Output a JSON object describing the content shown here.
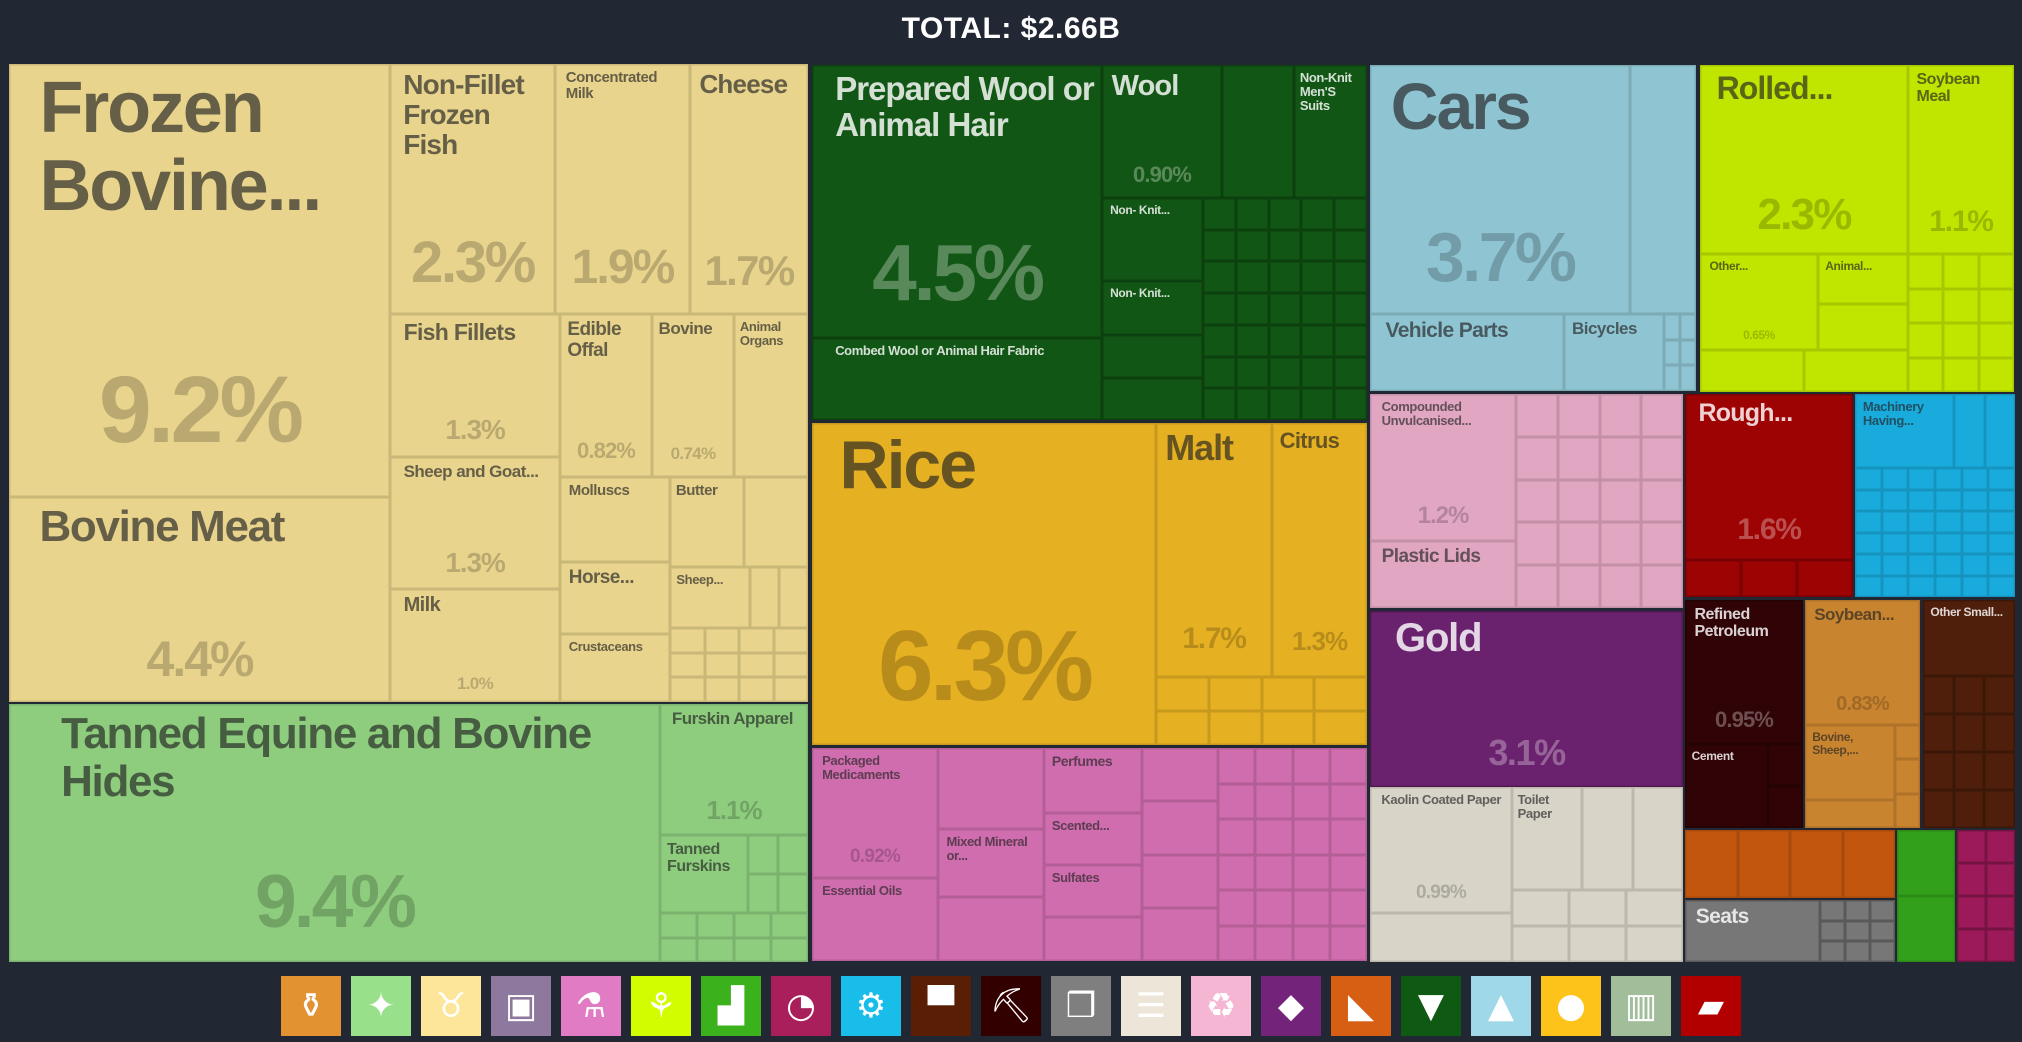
{
  "header": {
    "title": "TOTAL: $2.66B"
  },
  "sectors": {
    "animal_products": {
      "color": "#e8d48c",
      "dark": false
    },
    "animal_hides": {
      "color": "#8ecd7e",
      "dark": false
    },
    "textiles": {
      "color": "#125615",
      "dark": true
    },
    "vegetable_products": {
      "color": "#e5b021",
      "dark": false
    },
    "chemicals": {
      "color": "#cf6dae",
      "dark": false
    },
    "transportation": {
      "color": "#8fc5d2",
      "dark": false
    },
    "vegetable_produce": {
      "color": "#c0e600",
      "dark": false
    },
    "plastics": {
      "color": "#e0a6c2",
      "dark": false
    },
    "precious": {
      "color": "#6b226e",
      "dark": true
    },
    "paper": {
      "color": "#d8d4c8",
      "dark": false
    },
    "wood": {
      "color": "#9e0304",
      "dark": true
    },
    "machines": {
      "color": "#1aabdd",
      "dark": false
    },
    "mineral": {
      "color": "#300406",
      "dark": true
    },
    "foodstuffs": {
      "color": "#c98430",
      "dark": false
    },
    "metals": {
      "color": "#4f1f0b",
      "dark": true
    },
    "stone": {
      "color": "#c2560f",
      "dark": false
    },
    "misc": {
      "color": "#777777",
      "dark": true
    },
    "footwear": {
      "color": "#33a01c",
      "dark": false
    },
    "instruments": {
      "color": "#9d1a5a",
      "dark": true
    }
  },
  "cells": [
    {
      "label": "Frozen Bovine...",
      "share": "9.2%",
      "sector": "animal_products"
    },
    {
      "label": "Bovine Meat",
      "share": "4.4%",
      "sector": "animal_products"
    },
    {
      "label": "Non-Fillet Frozen Fish",
      "share": "2.3%",
      "sector": "animal_products"
    },
    {
      "label": "Concentrated Milk",
      "share": "1.9%",
      "sector": "animal_products"
    },
    {
      "label": "Cheese",
      "share": "1.7%",
      "sector": "animal_products"
    },
    {
      "label": "Fish Fillets",
      "share": "1.3%",
      "sector": "animal_products"
    },
    {
      "label": "Sheep and Goat...",
      "share": "1.3%",
      "sector": "animal_products"
    },
    {
      "label": "Milk",
      "share": "1.0%",
      "sector": "animal_products"
    },
    {
      "label": "Edible Offal",
      "share": "0.82%",
      "sector": "animal_products"
    },
    {
      "label": "Bovine",
      "share": "0.74%",
      "sector": "animal_products"
    },
    {
      "label": "Animal Organs",
      "share": null,
      "sector": "animal_products"
    },
    {
      "label": "Molluscs",
      "share": null,
      "sector": "animal_products"
    },
    {
      "label": "Butter",
      "share": null,
      "sector": "animal_products"
    },
    {
      "label": "Horse...",
      "share": null,
      "sector": "animal_products"
    },
    {
      "label": "Crustaceans",
      "share": null,
      "sector": "animal_products"
    },
    {
      "label": "Sheep...",
      "share": null,
      "sector": "animal_products"
    },
    {
      "label": "Tanned Equine and Bovine Hides",
      "share": "9.4%",
      "sector": "animal_hides"
    },
    {
      "label": "Furskin Apparel",
      "share": "1.1%",
      "sector": "animal_hides"
    },
    {
      "label": "Tanned Furskins",
      "share": null,
      "sector": "animal_hides"
    },
    {
      "label": "Prepared Wool or Animal Hair",
      "share": "4.5%",
      "sector": "textiles"
    },
    {
      "label": "Combed Wool or Animal Hair Fabric",
      "share": null,
      "sector": "textiles"
    },
    {
      "label": "Wool",
      "share": "0.90%",
      "sector": "textiles"
    },
    {
      "label": "Non-Knit Men'S Suits",
      "share": null,
      "sector": "textiles"
    },
    {
      "label": "Non- Knit...",
      "share": null,
      "sector": "textiles"
    },
    {
      "label": "Non- Knit...",
      "share": null,
      "sector": "textiles"
    },
    {
      "label": "Rice",
      "share": "6.3%",
      "sector": "vegetable_products"
    },
    {
      "label": "Malt",
      "share": "1.7%",
      "sector": "vegetable_products"
    },
    {
      "label": "Citrus",
      "share": "1.3%",
      "sector": "vegetable_products"
    },
    {
      "label": "Packaged Medicaments",
      "share": "0.92%",
      "sector": "chemicals"
    },
    {
      "label": "Essential Oils",
      "share": null,
      "sector": "chemicals"
    },
    {
      "label": "Mixed Mineral or...",
      "share": null,
      "sector": "chemicals"
    },
    {
      "label": "Perfumes",
      "share": null,
      "sector": "chemicals"
    },
    {
      "label": "Scented...",
      "share": null,
      "sector": "chemicals"
    },
    {
      "label": "Sulfates",
      "share": null,
      "sector": "chemicals"
    },
    {
      "label": "Cars",
      "share": "3.7%",
      "sector": "transportation"
    },
    {
      "label": "Vehicle Parts",
      "share": null,
      "sector": "transportation"
    },
    {
      "label": "Bicycles",
      "share": null,
      "sector": "transportation"
    },
    {
      "label": "Rolled...",
      "share": "2.3%",
      "sector": "vegetable_produce"
    },
    {
      "label": "Soybean Meal",
      "share": "1.1%",
      "sector": "vegetable_produce"
    },
    {
      "label": "Other...",
      "share": "0.65%",
      "sector": "vegetable_produce"
    },
    {
      "label": "Animal...",
      "share": null,
      "sector": "vegetable_produce"
    },
    {
      "label": "Compounded Unvulcanised...",
      "share": "1.2%",
      "sector": "plastics"
    },
    {
      "label": "Plastic Lids",
      "share": null,
      "sector": "plastics"
    },
    {
      "label": "Gold",
      "share": "3.1%",
      "sector": "precious"
    },
    {
      "label": "Kaolin Coated Paper",
      "share": "0.99%",
      "sector": "paper"
    },
    {
      "label": "Toilet Paper",
      "share": null,
      "sector": "paper"
    },
    {
      "label": "Rough...",
      "share": "1.6%",
      "sector": "wood"
    },
    {
      "label": "Machinery Having...",
      "share": null,
      "sector": "machines"
    },
    {
      "label": "Refined Petroleum",
      "share": "0.95%",
      "sector": "mineral"
    },
    {
      "label": "Cement",
      "share": null,
      "sector": "mineral"
    },
    {
      "label": "Soybean...",
      "share": "0.83%",
      "sector": "foodstuffs"
    },
    {
      "label": "Bovine, Sheep,...",
      "share": null,
      "sector": "foodstuffs"
    },
    {
      "label": "Other Small...",
      "share": null,
      "sector": "metals"
    },
    {
      "label": "Seats",
      "share": null,
      "sector": "misc"
    }
  ],
  "legend": [
    {
      "icon": "bottle-icon",
      "sector": "foodstuffs",
      "color": "#e29230"
    },
    {
      "icon": "hide-icon",
      "sector": "animal_hides",
      "color": "#99e08a"
    },
    {
      "icon": "cow-icon",
      "sector": "animal_products",
      "color": "#fde699"
    },
    {
      "icon": "picture-frame-icon",
      "sector": "arts",
      "color": "#8f789d"
    },
    {
      "icon": "flask-icon",
      "sector": "chemicals",
      "color": "#e17bc3"
    },
    {
      "icon": "wheat-icon",
      "sector": "vegetable_produce",
      "color": "#d2fd00"
    },
    {
      "icon": "shoe-icon",
      "sector": "footwear",
      "color": "#3bb11b"
    },
    {
      "icon": "gauge-icon",
      "sector": "instruments",
      "color": "#a81f5c"
    },
    {
      "icon": "gears-icon",
      "sector": "machines",
      "color": "#18bde9"
    },
    {
      "icon": "anvil-icon",
      "sector": "metals",
      "color": "#5a1e05"
    },
    {
      "icon": "pickaxe-icon",
      "sector": "mineral",
      "color": "#330000"
    },
    {
      "icon": "boxes-icon",
      "sector": "misc",
      "color": "#7f7f7f"
    },
    {
      "icon": "scroll-icon",
      "sector": "paper",
      "color": "#ede5d8"
    },
    {
      "icon": "recycle-icon",
      "sector": "plastics",
      "color": "#f5b6d4"
    },
    {
      "icon": "diamond-icon",
      "sector": "precious",
      "color": "#73237a"
    },
    {
      "icon": "rocks-icon",
      "sector": "stone",
      "color": "#d65f14"
    },
    {
      "icon": "shirt-icon",
      "sector": "textiles",
      "color": "#0f5a12"
    },
    {
      "icon": "road-icon",
      "sector": "transportation",
      "color": "#9fd8e8"
    },
    {
      "icon": "tomato-icon",
      "sector": "vegetable_products",
      "color": "#fdc31a"
    },
    {
      "icon": "ammunition-icon",
      "sector": "weapons",
      "color": "#a1bd9a"
    },
    {
      "icon": "wood-plank-icon",
      "sector": "wood",
      "color": "#b20000"
    }
  ]
}
